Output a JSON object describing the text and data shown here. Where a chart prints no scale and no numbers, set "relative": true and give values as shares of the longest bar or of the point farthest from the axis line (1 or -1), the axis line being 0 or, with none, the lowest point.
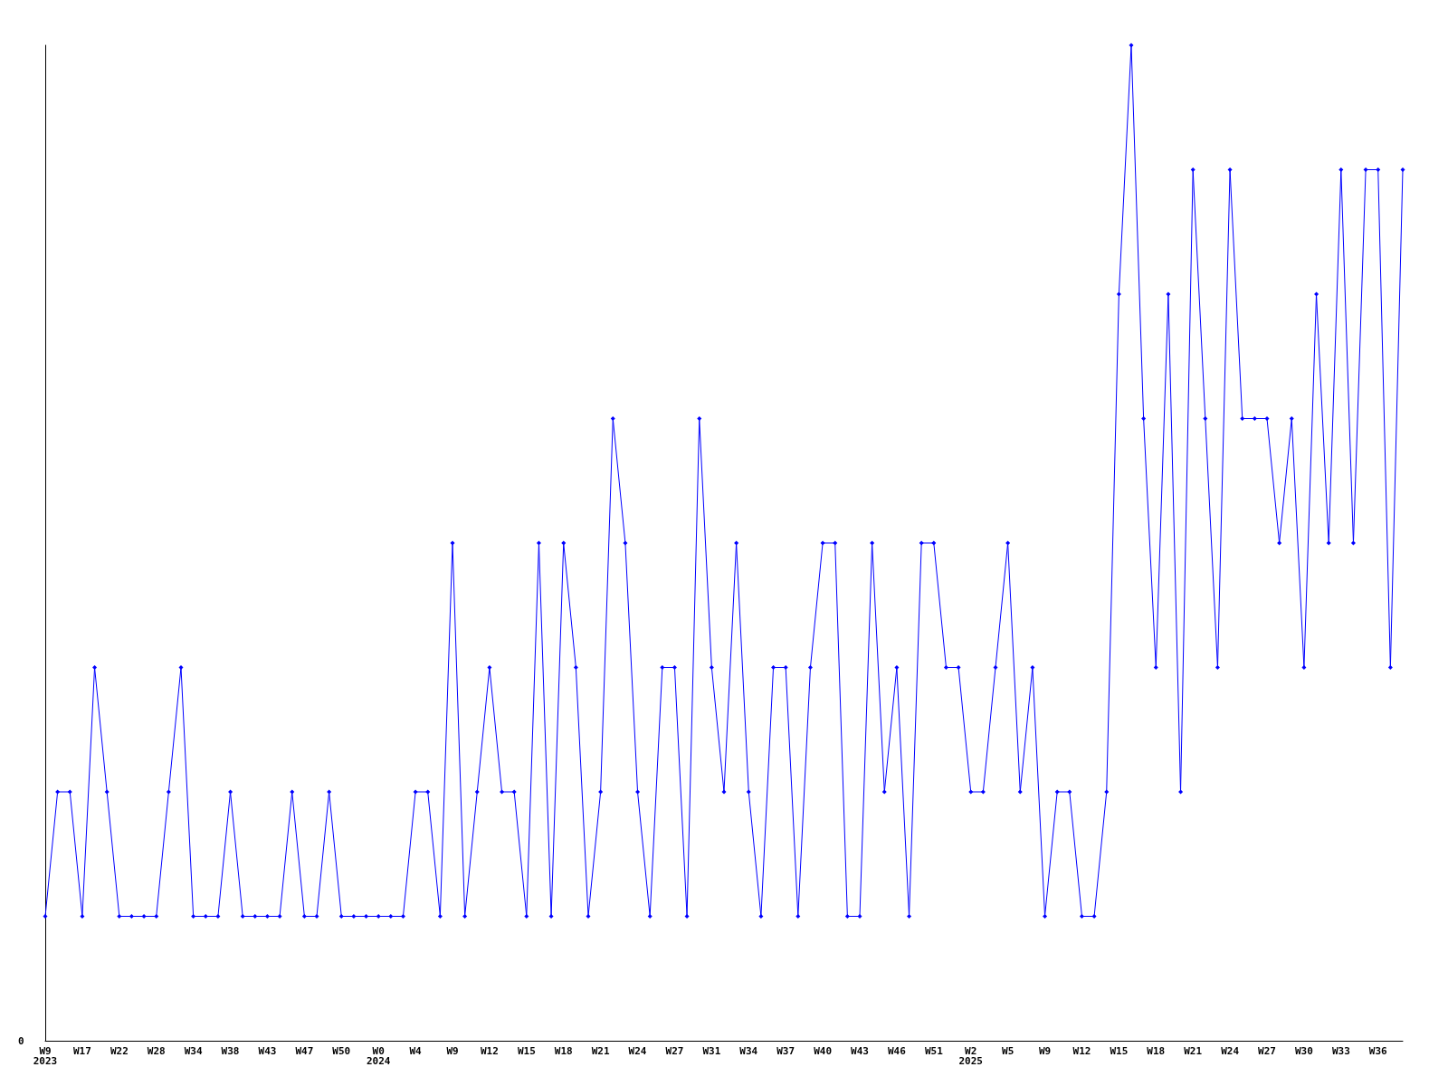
{
  "chart_data": {
    "type": "line",
    "relative": true,
    "grid": false,
    "marker": "diamond",
    "line_style": "solid",
    "annotations": [
      "0"
    ],
    "categories": [
      "W9\n2023",
      null,
      null,
      "W17",
      null,
      null,
      "W22",
      null,
      null,
      "W28",
      null,
      null,
      "W34",
      null,
      null,
      "W38",
      null,
      null,
      "W43",
      null,
      null,
      "W47",
      null,
      null,
      "W50",
      null,
      null,
      "W0\n2024",
      null,
      null,
      "W4",
      null,
      null,
      "W9",
      null,
      null,
      "W12",
      null,
      null,
      "W15",
      null,
      null,
      "W18",
      null,
      null,
      "W21",
      null,
      null,
      "W24",
      null,
      null,
      "W27",
      null,
      null,
      "W31",
      null,
      null,
      "W34",
      null,
      null,
      "W37",
      null,
      null,
      "W40",
      null,
      null,
      "W43",
      null,
      null,
      "W46",
      null,
      null,
      "W51",
      null,
      null,
      "W2\n2025",
      null,
      null,
      "W5",
      null,
      null,
      "W9",
      null,
      null,
      "W12",
      null,
      null,
      "W15",
      null,
      null,
      "W18",
      null,
      null,
      "W21",
      null,
      null,
      "W24",
      null,
      null,
      "W27",
      null,
      null,
      "W30",
      null,
      null,
      "W33",
      null,
      null,
      "W36",
      null,
      null
    ],
    "series": [
      {
        "color": "#0000ff",
        "values": [
          0.125,
          0.25,
          0.25,
          0.125,
          0.375,
          0.25,
          0.125,
          0.125,
          0.125,
          0.125,
          0.25,
          0.375,
          0.125,
          0.125,
          0.125,
          0.25,
          0.125,
          0.125,
          0.125,
          0.125,
          0.25,
          0.125,
          0.125,
          0.25,
          0.125,
          0.125,
          0.125,
          0.125,
          0.125,
          0.125,
          0.25,
          0.25,
          0.125,
          0.5,
          0.125,
          0.25,
          0.375,
          0.25,
          0.25,
          0.125,
          0.5,
          0.125,
          0.5,
          0.375,
          0.125,
          0.25,
          0.625,
          0.5,
          0.25,
          0.125,
          0.375,
          0.375,
          0.125,
          0.625,
          0.375,
          0.25,
          0.5,
          0.25,
          0.125,
          0.375,
          0.375,
          0.125,
          0.375,
          0.5,
          0.5,
          0.125,
          0.125,
          0.5,
          0.25,
          0.375,
          0.125,
          0.5,
          0.5,
          0.375,
          0.375,
          0.25,
          0.25,
          0.375,
          0.5,
          0.25,
          0.375,
          0.125,
          0.25,
          0.25,
          0.125,
          0.125,
          0.25,
          0.75,
          1,
          0.625,
          0.375,
          0.75,
          0.25,
          0.875,
          0.625,
          0.375,
          0.875,
          0.625,
          0.625,
          0.625,
          0.5,
          0.625,
          0.375,
          0.75,
          0.5,
          0.875,
          0.5,
          0.875,
          0.875,
          0.375,
          0.875
        ]
      }
    ]
  }
}
